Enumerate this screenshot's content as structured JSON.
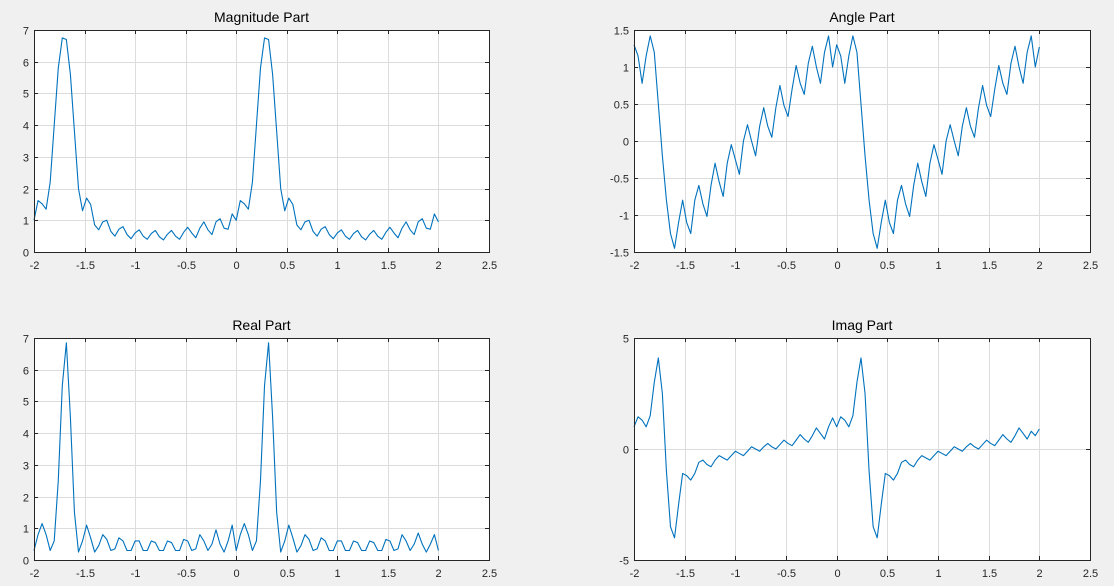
{
  "window": {
    "background": "#f0f0f0"
  },
  "series_color": "#0072bd",
  "chart_data": [
    {
      "type": "line",
      "title": "Magnitude Part",
      "xlim": [
        -2,
        2.5
      ],
      "ylim": [
        0,
        7
      ],
      "xticks": [
        -2,
        -1.5,
        -1,
        -0.5,
        0,
        0.5,
        1,
        1.5,
        2,
        2.5
      ],
      "xtick_labels": [
        "-2",
        "-1.5",
        "-1",
        "-0.5",
        "0",
        "0.5",
        "1",
        "1.5",
        "2",
        "2.5"
      ],
      "yticks": [
        0,
        1,
        2,
        3,
        4,
        5,
        6,
        7
      ],
      "ytick_labels": [
        "0",
        "1",
        "2",
        "3",
        "4",
        "5",
        "6",
        "7"
      ],
      "grid": true,
      "series": [
        {
          "x": [
            -2,
            -1.96,
            -1.92,
            -1.88,
            -1.84,
            -1.8,
            -1.76,
            -1.72,
            -1.68,
            -1.64,
            -1.6,
            -1.56,
            -1.52,
            -1.48,
            -1.44,
            -1.4,
            -1.36,
            -1.32,
            -1.28,
            -1.24,
            -1.2,
            -1.16,
            -1.12,
            -1.08,
            -1.04,
            -1.0,
            -0.96,
            -0.92,
            -0.88,
            -0.84,
            -0.8,
            -0.76,
            -0.72,
            -0.68,
            -0.64,
            -0.6,
            -0.56,
            -0.52,
            -0.48,
            -0.44,
            -0.4,
            -0.36,
            -0.32,
            -0.28,
            -0.24,
            -0.2,
            -0.16,
            -0.12,
            -0.08,
            -0.04,
            0.0,
            0.04,
            0.08,
            0.12,
            0.16,
            0.2,
            0.24,
            0.28,
            0.32,
            0.36,
            0.4,
            0.44,
            0.48,
            0.52,
            0.56,
            0.6,
            0.64,
            0.68,
            0.72,
            0.76,
            0.8,
            0.84,
            0.88,
            0.92,
            0.96,
            1.0,
            1.04,
            1.08,
            1.12,
            1.16,
            1.2,
            1.24,
            1.28,
            1.32,
            1.36,
            1.4,
            1.44,
            1.48,
            1.52,
            1.56,
            1.6,
            1.64,
            1.68,
            1.72,
            1.76,
            1.8,
            1.84,
            1.88,
            1.92,
            1.96,
            2.0
          ],
          "y": [
            1.0,
            1.62,
            1.52,
            1.35,
            2.2,
            4.0,
            5.8,
            6.75,
            6.7,
            5.6,
            3.8,
            2.0,
            1.3,
            1.7,
            1.5,
            0.85,
            0.7,
            0.95,
            1.0,
            0.65,
            0.5,
            0.72,
            0.8,
            0.55,
            0.42,
            0.6,
            0.7,
            0.5,
            0.4,
            0.58,
            0.68,
            0.48,
            0.38,
            0.56,
            0.68,
            0.5,
            0.4,
            0.62,
            0.78,
            0.6,
            0.45,
            0.75,
            0.95,
            0.7,
            0.55,
            0.95,
            1.05,
            0.75,
            0.72,
            1.2,
            1.0,
            1.62,
            1.52,
            1.35,
            2.2,
            4.0,
            5.8,
            6.75,
            6.7,
            5.6,
            3.8,
            2.0,
            1.3,
            1.7,
            1.5,
            0.85,
            0.7,
            0.95,
            1.0,
            0.65,
            0.5,
            0.72,
            0.8,
            0.55,
            0.42,
            0.6,
            0.7,
            0.5,
            0.4,
            0.58,
            0.68,
            0.48,
            0.38,
            0.56,
            0.68,
            0.5,
            0.4,
            0.62,
            0.78,
            0.6,
            0.45,
            0.75,
            0.95,
            0.7,
            0.55,
            0.95,
            1.05,
            0.75,
            0.72,
            1.2,
            0.95
          ]
        }
      ]
    },
    {
      "type": "line",
      "title": "Angle Part",
      "xlim": [
        -2,
        2.5
      ],
      "ylim": [
        -1.5,
        1.5
      ],
      "xticks": [
        -2,
        -1.5,
        -1,
        -0.5,
        0,
        0.5,
        1,
        1.5,
        2,
        2.5
      ],
      "xtick_labels": [
        "-2",
        "-1.5",
        "-1",
        "-0.5",
        "0",
        "0.5",
        "1",
        "1.5",
        "2",
        "2.5"
      ],
      "yticks": [
        -1.5,
        -1,
        -0.5,
        0,
        0.5,
        1,
        1.5
      ],
      "ytick_labels": [
        "-1.5",
        "-1",
        "-0.5",
        "0",
        "0.5",
        "1",
        "1.5"
      ],
      "grid": true,
      "series": [
        {
          "x": [
            -2,
            -1.96,
            -1.92,
            -1.88,
            -1.84,
            -1.8,
            -1.76,
            -1.72,
            -1.68,
            -1.64,
            -1.6,
            -1.56,
            -1.52,
            -1.48,
            -1.44,
            -1.4,
            -1.36,
            -1.32,
            -1.28,
            -1.24,
            -1.2,
            -1.16,
            -1.12,
            -1.08,
            -1.04,
            -1.0,
            -0.96,
            -0.92,
            -0.88,
            -0.84,
            -0.8,
            -0.76,
            -0.72,
            -0.68,
            -0.64,
            -0.6,
            -0.56,
            -0.52,
            -0.48,
            -0.44,
            -0.4,
            -0.36,
            -0.32,
            -0.28,
            -0.24,
            -0.2,
            -0.16,
            -0.12,
            -0.08,
            -0.04,
            0.0,
            0.04,
            0.08,
            0.12,
            0.16,
            0.2,
            0.24,
            0.28,
            0.32,
            0.36,
            0.4,
            0.44,
            0.48,
            0.52,
            0.56,
            0.6,
            0.64,
            0.68,
            0.72,
            0.76,
            0.8,
            0.84,
            0.88,
            0.92,
            0.96,
            1.0,
            1.04,
            1.08,
            1.12,
            1.16,
            1.2,
            1.24,
            1.28,
            1.32,
            1.36,
            1.4,
            1.44,
            1.48,
            1.52,
            1.56,
            1.6,
            1.64,
            1.68,
            1.72,
            1.76,
            1.8,
            1.84,
            1.88,
            1.92,
            1.96,
            2.0
          ],
          "y": [
            1.3,
            1.15,
            0.78,
            1.15,
            1.42,
            1.2,
            0.5,
            -0.2,
            -0.8,
            -1.25,
            -1.45,
            -1.1,
            -0.8,
            -1.1,
            -1.25,
            -0.8,
            -0.6,
            -0.85,
            -1.02,
            -0.6,
            -0.3,
            -0.55,
            -0.75,
            -0.3,
            -0.05,
            -0.25,
            -0.45,
            0.0,
            0.22,
            0.0,
            -0.2,
            0.2,
            0.45,
            0.2,
            0.05,
            0.45,
            0.75,
            0.48,
            0.33,
            0.7,
            1.02,
            0.78,
            0.63,
            1.05,
            1.28,
            1.0,
            0.78,
            1.2,
            1.42,
            1.0,
            1.3,
            1.15,
            0.78,
            1.15,
            1.42,
            1.2,
            0.5,
            -0.2,
            -0.8,
            -1.25,
            -1.45,
            -1.1,
            -0.8,
            -1.1,
            -1.25,
            -0.8,
            -0.6,
            -0.85,
            -1.02,
            -0.6,
            -0.3,
            -0.55,
            -0.75,
            -0.3,
            -0.05,
            -0.25,
            -0.45,
            0.0,
            0.22,
            0.0,
            -0.2,
            0.2,
            0.45,
            0.2,
            0.05,
            0.45,
            0.75,
            0.48,
            0.33,
            0.7,
            1.02,
            0.78,
            0.63,
            1.05,
            1.28,
            1.0,
            0.78,
            1.2,
            1.42,
            1.0,
            1.27
          ]
        }
      ]
    },
    {
      "type": "line",
      "title": "Real Part",
      "xlim": [
        -2,
        2.5
      ],
      "ylim": [
        0,
        7
      ],
      "xticks": [
        -2,
        -1.5,
        -1,
        -0.5,
        0,
        0.5,
        1,
        1.5,
        2,
        2.5
      ],
      "xtick_labels": [
        "-2",
        "-1.5",
        "-1",
        "-0.5",
        "0",
        "0.5",
        "1",
        "1.5",
        "2",
        "2.5"
      ],
      "yticks": [
        0,
        1,
        2,
        3,
        4,
        5,
        6,
        7
      ],
      "ytick_labels": [
        "0",
        "1",
        "2",
        "3",
        "4",
        "5",
        "6",
        "7"
      ],
      "grid": true,
      "series": [
        {
          "x": [
            -2,
            -1.96,
            -1.92,
            -1.88,
            -1.84,
            -1.8,
            -1.76,
            -1.72,
            -1.68,
            -1.64,
            -1.6,
            -1.56,
            -1.52,
            -1.48,
            -1.44,
            -1.4,
            -1.36,
            -1.32,
            -1.28,
            -1.24,
            -1.2,
            -1.16,
            -1.12,
            -1.08,
            -1.04,
            -1.0,
            -0.96,
            -0.92,
            -0.88,
            -0.84,
            -0.8,
            -0.76,
            -0.72,
            -0.68,
            -0.64,
            -0.6,
            -0.56,
            -0.52,
            -0.48,
            -0.44,
            -0.4,
            -0.36,
            -0.32,
            -0.28,
            -0.24,
            -0.2,
            -0.16,
            -0.12,
            -0.08,
            -0.04,
            0.0,
            0.04,
            0.08,
            0.12,
            0.16,
            0.2,
            0.24,
            0.28,
            0.32,
            0.36,
            0.4,
            0.44,
            0.48,
            0.52,
            0.56,
            0.6,
            0.64,
            0.68,
            0.72,
            0.76,
            0.8,
            0.84,
            0.88,
            0.92,
            0.96,
            1.0,
            1.04,
            1.08,
            1.12,
            1.16,
            1.2,
            1.24,
            1.28,
            1.32,
            1.36,
            1.4,
            1.44,
            1.48,
            1.52,
            1.56,
            1.6,
            1.64,
            1.68,
            1.72,
            1.76,
            1.8,
            1.84,
            1.88,
            1.92,
            1.96,
            2.0
          ],
          "y": [
            0.3,
            0.8,
            1.15,
            0.8,
            0.3,
            0.6,
            2.5,
            5.5,
            6.85,
            4.5,
            1.5,
            0.25,
            0.6,
            1.1,
            0.7,
            0.25,
            0.45,
            0.8,
            0.65,
            0.3,
            0.35,
            0.7,
            0.6,
            0.3,
            0.3,
            0.6,
            0.6,
            0.3,
            0.3,
            0.6,
            0.55,
            0.3,
            0.3,
            0.6,
            0.55,
            0.3,
            0.3,
            0.65,
            0.6,
            0.3,
            0.35,
            0.8,
            0.6,
            0.3,
            0.5,
            0.95,
            0.5,
            0.25,
            0.6,
            1.1,
            0.3,
            0.8,
            1.15,
            0.8,
            0.3,
            0.6,
            2.5,
            5.5,
            6.85,
            4.5,
            1.5,
            0.25,
            0.6,
            1.1,
            0.7,
            0.25,
            0.45,
            0.8,
            0.65,
            0.3,
            0.35,
            0.7,
            0.6,
            0.3,
            0.3,
            0.6,
            0.6,
            0.3,
            0.3,
            0.6,
            0.55,
            0.3,
            0.3,
            0.6,
            0.55,
            0.3,
            0.3,
            0.65,
            0.6,
            0.3,
            0.35,
            0.8,
            0.6,
            0.3,
            0.5,
            0.85,
            0.5,
            0.25,
            0.5,
            0.8,
            0.3
          ]
        }
      ]
    },
    {
      "type": "line",
      "title": "Imag Part",
      "xlim": [
        -2,
        2.5
      ],
      "ylim": [
        -5,
        5
      ],
      "xticks": [
        -2,
        -1.5,
        -1,
        -0.5,
        0,
        0.5,
        1,
        1.5,
        2,
        2.5
      ],
      "xtick_labels": [
        "-2",
        "-1.5",
        "-1",
        "-0.5",
        "0",
        "0.5",
        "1",
        "1.5",
        "2",
        "2.5"
      ],
      "yticks": [
        -5,
        0,
        5
      ],
      "ytick_labels": [
        "-5",
        "0",
        "5"
      ],
      "grid": true,
      "series": [
        {
          "x": [
            -2,
            -1.96,
            -1.92,
            -1.88,
            -1.84,
            -1.8,
            -1.76,
            -1.72,
            -1.68,
            -1.64,
            -1.6,
            -1.56,
            -1.52,
            -1.48,
            -1.44,
            -1.4,
            -1.36,
            -1.32,
            -1.28,
            -1.24,
            -1.2,
            -1.16,
            -1.12,
            -1.08,
            -1.04,
            -1.0,
            -0.96,
            -0.92,
            -0.88,
            -0.84,
            -0.8,
            -0.76,
            -0.72,
            -0.68,
            -0.64,
            -0.6,
            -0.56,
            -0.52,
            -0.48,
            -0.44,
            -0.4,
            -0.36,
            -0.32,
            -0.28,
            -0.24,
            -0.2,
            -0.16,
            -0.12,
            -0.08,
            -0.04,
            0.0,
            0.04,
            0.08,
            0.12,
            0.16,
            0.2,
            0.24,
            0.28,
            0.32,
            0.36,
            0.4,
            0.44,
            0.48,
            0.52,
            0.56,
            0.6,
            0.64,
            0.68,
            0.72,
            0.76,
            0.8,
            0.84,
            0.88,
            0.92,
            0.96,
            1.0,
            1.04,
            1.08,
            1.12,
            1.16,
            1.2,
            1.24,
            1.28,
            1.32,
            1.36,
            1.4,
            1.44,
            1.48,
            1.52,
            1.56,
            1.6,
            1.64,
            1.68,
            1.72,
            1.76,
            1.8,
            1.84,
            1.88,
            1.92,
            1.96,
            2.0
          ],
          "y": [
            1.0,
            1.45,
            1.3,
            1.0,
            1.5,
            3.0,
            4.1,
            2.5,
            -1.0,
            -3.5,
            -4.0,
            -2.5,
            -1.1,
            -1.2,
            -1.4,
            -1.1,
            -0.6,
            -0.5,
            -0.7,
            -0.8,
            -0.5,
            -0.3,
            -0.4,
            -0.5,
            -0.3,
            -0.1,
            -0.2,
            -0.3,
            -0.1,
            0.1,
            0.0,
            -0.1,
            0.1,
            0.25,
            0.1,
            0.0,
            0.2,
            0.4,
            0.25,
            0.15,
            0.4,
            0.65,
            0.45,
            0.3,
            0.6,
            0.95,
            0.7,
            0.45,
            1.0,
            1.4,
            1.0,
            1.45,
            1.3,
            1.0,
            1.5,
            3.0,
            4.1,
            2.5,
            -1.0,
            -3.5,
            -4.0,
            -2.5,
            -1.1,
            -1.2,
            -1.4,
            -1.1,
            -0.6,
            -0.5,
            -0.7,
            -0.8,
            -0.5,
            -0.3,
            -0.4,
            -0.5,
            -0.3,
            -0.1,
            -0.2,
            -0.3,
            -0.1,
            0.1,
            0.0,
            -0.1,
            0.1,
            0.25,
            0.1,
            0.0,
            0.2,
            0.4,
            0.25,
            0.15,
            0.4,
            0.65,
            0.45,
            0.3,
            0.6,
            0.95,
            0.7,
            0.45,
            0.8,
            0.6,
            0.9
          ]
        }
      ]
    }
  ]
}
